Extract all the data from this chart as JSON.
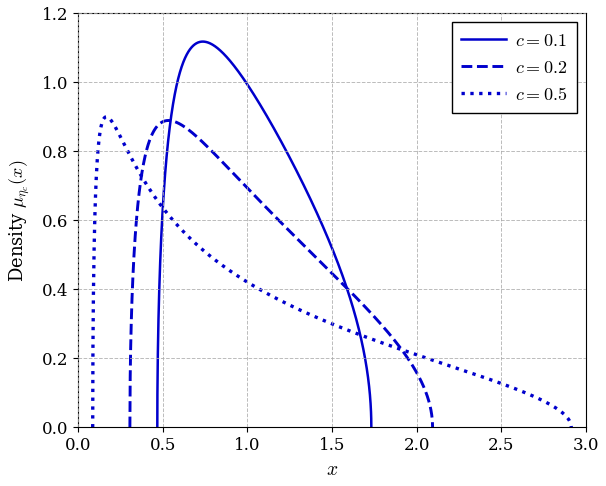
{
  "title": "",
  "xlabel": "$x$",
  "ylabel": "Density $\\mu_{\\eta_c}(x)$",
  "c_values": [
    0.1,
    0.2,
    0.5
  ],
  "line_styles": [
    "solid",
    "dashed",
    "dotted"
  ],
  "line_color": "#0000CC",
  "line_width": 1.8,
  "xlim": [
    0,
    3.0
  ],
  "ylim": [
    0,
    1.2
  ],
  "xticks": [
    0,
    0.5,
    1,
    1.5,
    2,
    2.5,
    3
  ],
  "yticks": [
    0,
    0.2,
    0.4,
    0.6,
    0.8,
    1.0,
    1.2
  ],
  "grid_color": "#AAAAAA",
  "grid_linestyle": "--",
  "legend_labels": [
    "$c = 0.1$",
    "$c = 0.2$",
    "$c = 0.5$"
  ],
  "legend_loc": "upper right",
  "background_color": "#ffffff",
  "num_points": 2000
}
